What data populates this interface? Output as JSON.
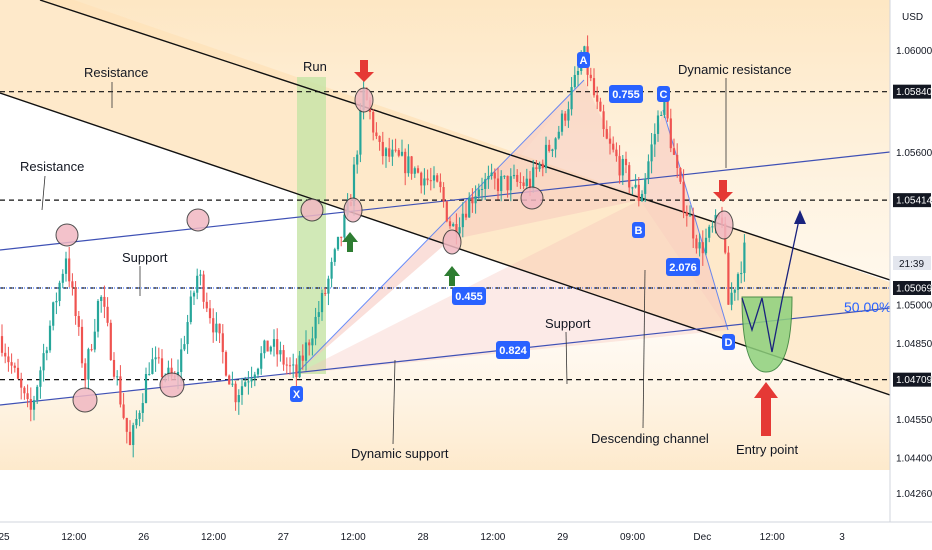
{
  "chart_data": {
    "type": "candlestick",
    "currency": "USD",
    "ylim": [
      1.0415,
      1.062
    ],
    "y_ticks": [
      "1.06000",
      "1.05600",
      "1.05414",
      "1.05069",
      "1.05000",
      "1.04850",
      "1.04709",
      "1.04550",
      "1.04400",
      "1.04260"
    ],
    "x_ticks": [
      "25",
      "12:00",
      "26",
      "12:00",
      "27",
      "12:00",
      "28",
      "12:00",
      "29",
      "09:00",
      "Dec",
      "12:00",
      "3"
    ],
    "current_price_label": "21:39",
    "price_levels": [
      {
        "label": "1.05840",
        "value": 1.0584
      },
      {
        "label": "1.05414",
        "value": 1.05414
      },
      {
        "label": "1.05069",
        "value": 1.05069
      },
      {
        "label": "1.04709",
        "value": 1.04709
      }
    ],
    "fib_label": "50.00%",
    "pattern_points": [
      "X",
      "A",
      "B",
      "C",
      "D"
    ],
    "ratios": [
      "0.755",
      "0.455",
      "2.076",
      "0.824"
    ],
    "annotations": [
      "Resistance",
      "Resistance",
      "Support",
      "Support",
      "Run",
      "Dynamic resistance",
      "Dynamic support",
      "Descending channel",
      "Entry point"
    ],
    "colors": {
      "bull": "#26a69a",
      "bear": "#ef5350",
      "badge": "#2962ff",
      "arrow_red": "#e53935",
      "arrow_green": "#2e7d32",
      "channel_fill": "#fde9c8",
      "harmonic_fill": "#f8c9c0",
      "run_fill": "#c9e6a9",
      "entry_fill": "#8ed17c",
      "trendline": "#3f51b5"
    }
  }
}
